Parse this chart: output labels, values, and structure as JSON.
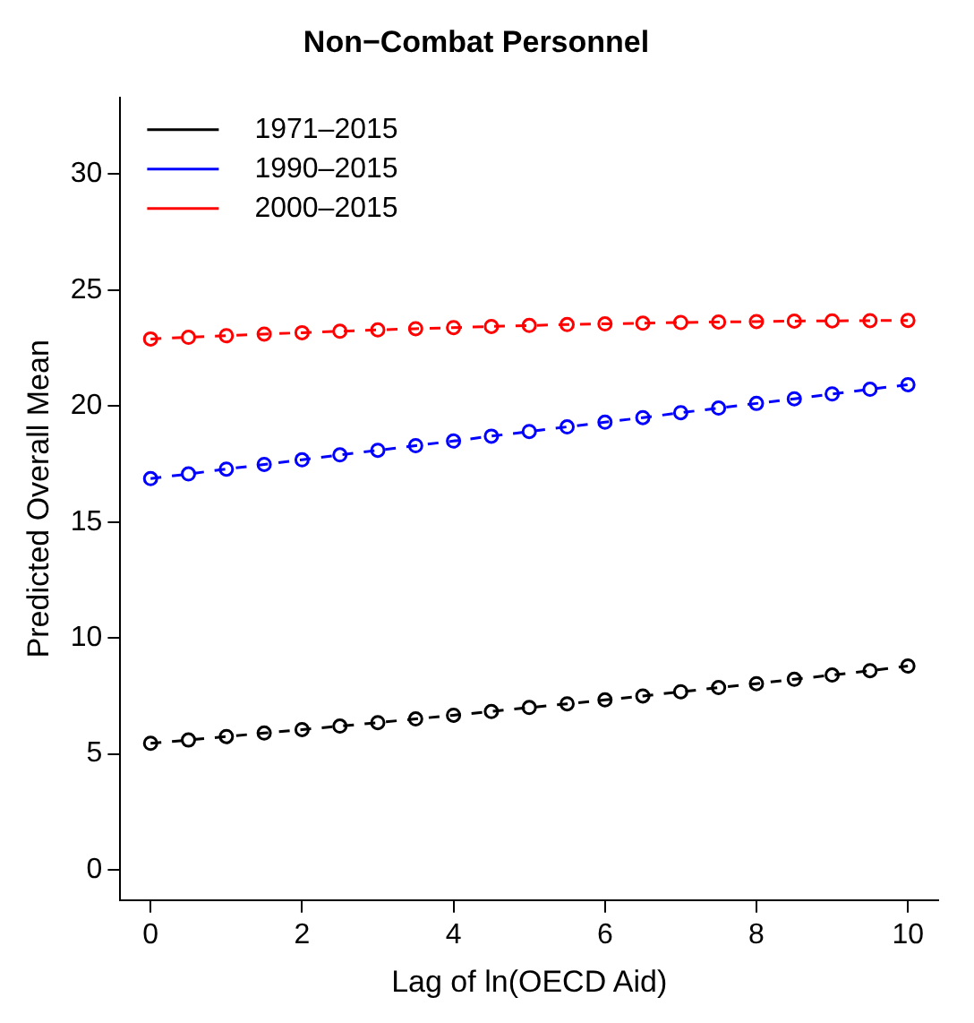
{
  "chart_data": {
    "type": "line",
    "title": "Non−Combat Personnel",
    "xlabel": "Lag of ln(OECD Aid)",
    "ylabel": "Predicted Overall Mean",
    "x": [
      0,
      0.5,
      1,
      1.5,
      2,
      2.5,
      3,
      3.5,
      4,
      4.5,
      5,
      5.5,
      6,
      6.5,
      7,
      7.5,
      8,
      8.5,
      9,
      9.5,
      10
    ],
    "series": [
      {
        "name": "1971–2015",
        "color": "#000000",
        "values": [
          5.46,
          5.6,
          5.75,
          5.9,
          6.05,
          6.2,
          6.35,
          6.51,
          6.67,
          6.83,
          7.0,
          7.16,
          7.33,
          7.5,
          7.68,
          7.86,
          8.03,
          8.22,
          8.4,
          8.59,
          8.79
        ]
      },
      {
        "name": "1990–2015",
        "color": "#0000ff",
        "values": [
          16.87,
          17.07,
          17.28,
          17.48,
          17.68,
          17.89,
          18.09,
          18.29,
          18.49,
          18.7,
          18.9,
          19.1,
          19.3,
          19.5,
          19.71,
          19.91,
          20.11,
          20.31,
          20.52,
          20.72,
          20.92
        ]
      },
      {
        "name": "2000–2015",
        "color": "#ff0000",
        "values": [
          22.89,
          22.96,
          23.03,
          23.1,
          23.16,
          23.22,
          23.28,
          23.33,
          23.38,
          23.43,
          23.47,
          23.51,
          23.54,
          23.57,
          23.6,
          23.62,
          23.64,
          23.66,
          23.67,
          23.68,
          23.69
        ]
      }
    ],
    "xlim": [
      -0.4,
      10.4
    ],
    "xticks": [
      0,
      2,
      4,
      6,
      8,
      10
    ],
    "ylim": [
      -1.3,
      33.3
    ],
    "yticks": [
      0,
      5,
      10,
      15,
      20,
      25,
      30
    ],
    "grid": false,
    "legend": "top left",
    "marker": "circle",
    "line_style": "dashed"
  }
}
